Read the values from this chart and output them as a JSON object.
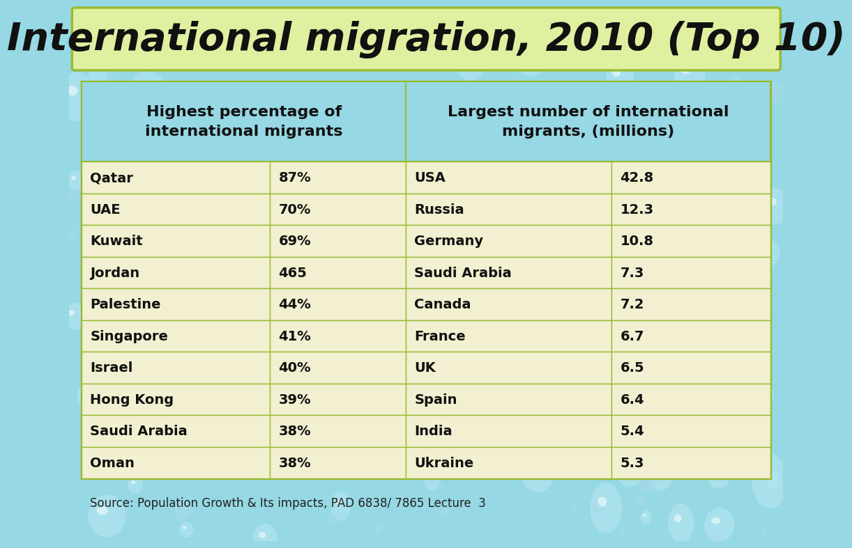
{
  "title": "International migration, 2010 (Top 10)",
  "title_bg_color": "#dff0a0",
  "title_text_color": "#111111",
  "bg_color": "#96d8e4",
  "cell_bg": "#f2f0d0",
  "left_header": "Highest percentage of\ninternational migrants",
  "right_header": "Largest number of international\nmigrants, (millions)",
  "left_data": [
    [
      "Qatar",
      "87%"
    ],
    [
      "UAE",
      "70%"
    ],
    [
      "Kuwait",
      "69%"
    ],
    [
      "Jordan",
      "465"
    ],
    [
      "Palestine",
      "44%"
    ],
    [
      "Singapore",
      "41%"
    ],
    [
      "Israel",
      "40%"
    ],
    [
      "Hong Kong",
      "39%"
    ],
    [
      "Saudi Arabia",
      "38%"
    ],
    [
      "Oman",
      "38%"
    ]
  ],
  "right_data": [
    [
      "USA",
      "42.8"
    ],
    [
      "Russia",
      "12.3"
    ],
    [
      "Germany",
      "10.8"
    ],
    [
      "Saudi Arabia",
      "7.3"
    ],
    [
      "Canada",
      "7.2"
    ],
    [
      "France",
      "6.7"
    ],
    [
      "UK",
      "6.5"
    ],
    [
      "Spain",
      "6.4"
    ],
    [
      "India",
      "5.4"
    ],
    [
      "Ukraine",
      "5.3"
    ]
  ],
  "source_text": "Source: Population Growth & Its impacts, PAD 6838/ 7865 Lecture  3",
  "source_color": "#222222",
  "border_color": "#99bb33",
  "text_color": "#111111",
  "value_color": "#111111",
  "header_text_color": "#111111"
}
